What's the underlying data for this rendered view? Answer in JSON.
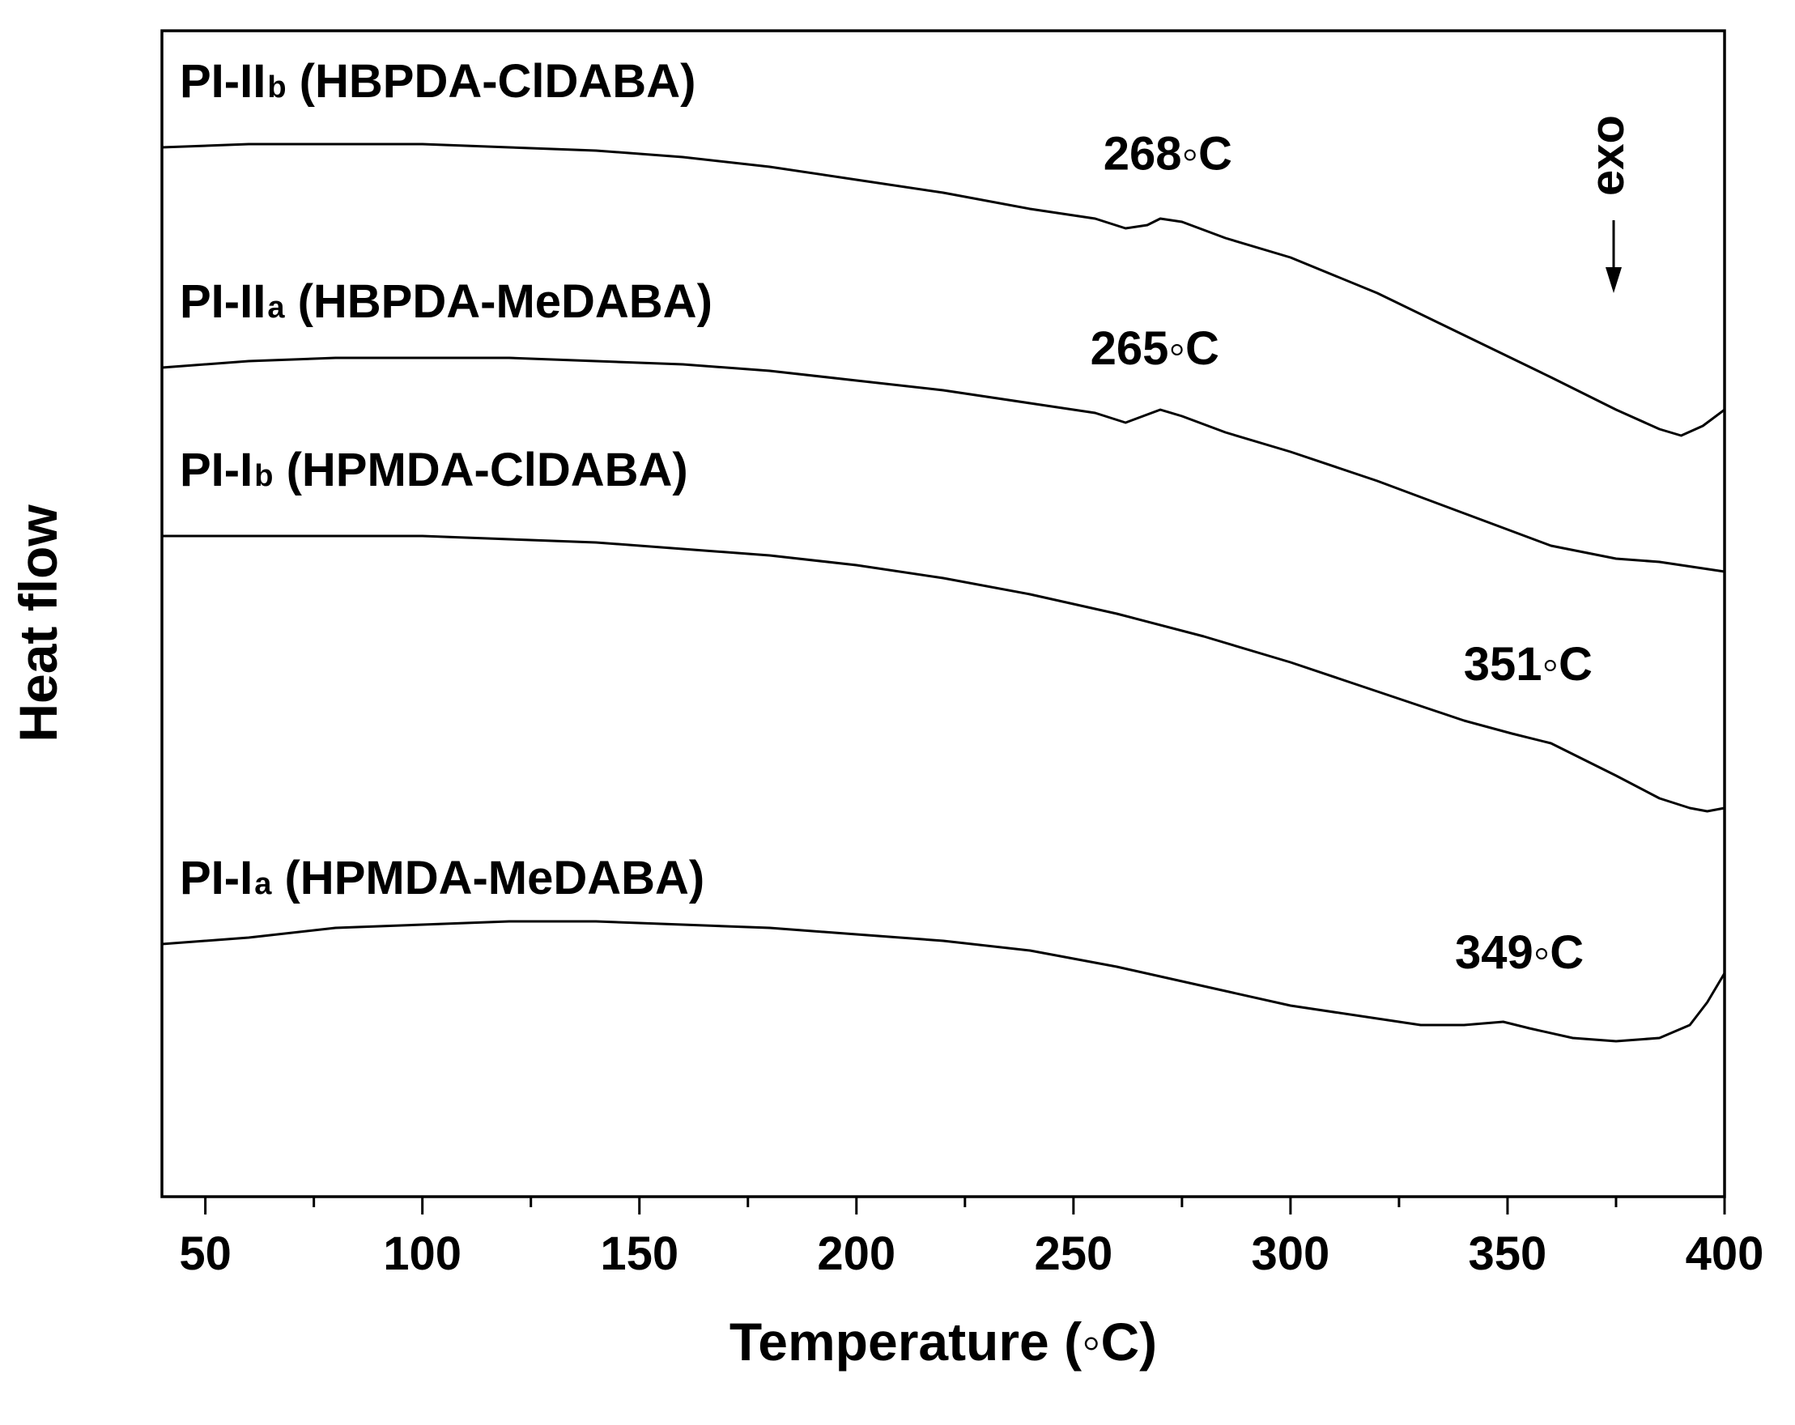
{
  "chart_data": {
    "type": "line",
    "xlabel": "Temperature (◦C)",
    "ylabel": "Heat flow",
    "xlim": [
      40,
      400
    ],
    "x_ticks": [
      50,
      100,
      150,
      200,
      250,
      300,
      350,
      400
    ],
    "y_scale": "arbitrary (curves vertically offset)",
    "grid": false,
    "exo_marker": {
      "label": "exo",
      "direction": "down",
      "x": 375
    },
    "series": [
      {
        "name_main": "PI-II",
        "name_sub": "b",
        "name_rest": " (HBPDA-ClDABA)",
        "points": [
          [
            40,
            3.24
          ],
          [
            60,
            3.25
          ],
          [
            80,
            3.25
          ],
          [
            100,
            3.25
          ],
          [
            120,
            3.24
          ],
          [
            140,
            3.23
          ],
          [
            160,
            3.21
          ],
          [
            180,
            3.18
          ],
          [
            200,
            3.14
          ],
          [
            220,
            3.1
          ],
          [
            240,
            3.05
          ],
          [
            255,
            3.02
          ],
          [
            262,
            2.99
          ],
          [
            267,
            3.0
          ],
          [
            270,
            3.02
          ],
          [
            275,
            3.01
          ],
          [
            285,
            2.96
          ],
          [
            300,
            2.9
          ],
          [
            320,
            2.79
          ],
          [
            340,
            2.66
          ],
          [
            360,
            2.53
          ],
          [
            375,
            2.43
          ],
          [
            385,
            2.37
          ],
          [
            390,
            2.35
          ],
          [
            395,
            2.38
          ],
          [
            400,
            2.43
          ]
        ]
      },
      {
        "name_main": "PI-II",
        "name_sub": "a",
        "name_rest": " (HBPDA-MeDABA)",
        "points": [
          [
            40,
            2.56
          ],
          [
            60,
            2.58
          ],
          [
            80,
            2.59
          ],
          [
            100,
            2.59
          ],
          [
            120,
            2.59
          ],
          [
            140,
            2.58
          ],
          [
            160,
            2.57
          ],
          [
            180,
            2.55
          ],
          [
            200,
            2.52
          ],
          [
            220,
            2.49
          ],
          [
            240,
            2.45
          ],
          [
            255,
            2.42
          ],
          [
            262,
            2.39
          ],
          [
            266,
            2.41
          ],
          [
            270,
            2.43
          ],
          [
            275,
            2.41
          ],
          [
            285,
            2.36
          ],
          [
            300,
            2.3
          ],
          [
            320,
            2.21
          ],
          [
            340,
            2.11
          ],
          [
            360,
            2.01
          ],
          [
            375,
            1.97
          ],
          [
            385,
            1.96
          ],
          [
            390,
            1.95
          ],
          [
            395,
            1.94
          ],
          [
            400,
            1.93
          ]
        ]
      },
      {
        "name_main": "PI-I",
        "name_sub": "b",
        "name_rest": " (HPMDA-ClDABA)",
        "points": [
          [
            40,
            2.04
          ],
          [
            60,
            2.04
          ],
          [
            80,
            2.04
          ],
          [
            100,
            2.04
          ],
          [
            120,
            2.03
          ],
          [
            140,
            2.02
          ],
          [
            160,
            2.0
          ],
          [
            180,
            1.98
          ],
          [
            200,
            1.95
          ],
          [
            220,
            1.91
          ],
          [
            240,
            1.86
          ],
          [
            260,
            1.8
          ],
          [
            280,
            1.73
          ],
          [
            300,
            1.65
          ],
          [
            320,
            1.56
          ],
          [
            340,
            1.47
          ],
          [
            351,
            1.43
          ],
          [
            360,
            1.4
          ],
          [
            375,
            1.3
          ],
          [
            385,
            1.23
          ],
          [
            392,
            1.2
          ],
          [
            396,
            1.19
          ],
          [
            400,
            1.2
          ]
        ]
      },
      {
        "name_main": "PI-I",
        "name_sub": "a",
        "name_rest": " (HPMDA-MeDABA)",
        "points": [
          [
            40,
            0.78
          ],
          [
            60,
            0.8
          ],
          [
            80,
            0.83
          ],
          [
            100,
            0.84
          ],
          [
            120,
            0.85
          ],
          [
            140,
            0.85
          ],
          [
            160,
            0.84
          ],
          [
            180,
            0.83
          ],
          [
            200,
            0.81
          ],
          [
            220,
            0.79
          ],
          [
            240,
            0.76
          ],
          [
            260,
            0.71
          ],
          [
            280,
            0.65
          ],
          [
            300,
            0.59
          ],
          [
            320,
            0.55
          ],
          [
            330,
            0.53
          ],
          [
            340,
            0.53
          ],
          [
            349,
            0.54
          ],
          [
            355,
            0.52
          ],
          [
            365,
            0.49
          ],
          [
            375,
            0.48
          ],
          [
            385,
            0.49
          ],
          [
            392,
            0.53
          ],
          [
            396,
            0.6
          ],
          [
            400,
            0.69
          ]
        ]
      }
    ],
    "annotations": [
      {
        "text": "268◦C",
        "x": 268,
        "series": 0
      },
      {
        "text": "265◦C",
        "x": 265,
        "series": 1
      },
      {
        "text": "351◦C",
        "x": 351,
        "series": 2
      },
      {
        "text": "349◦C",
        "x": 349,
        "series": 3
      }
    ]
  }
}
